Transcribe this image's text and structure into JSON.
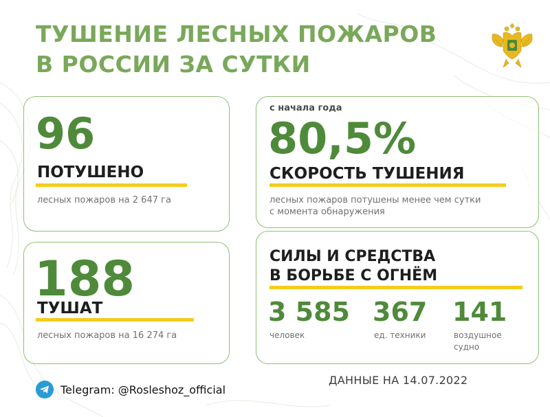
{
  "title": {
    "line1": "ТУШЕНИЕ ЛЕСНЫХ ПОЖАРОВ",
    "line2": "В РОССИИ ЗА СУТКИ"
  },
  "colors": {
    "accent_green": "#79a85a",
    "number_green": "#4e8a3a",
    "highlight_yellow": "#f4cc1a",
    "telegram_blue": "#2a9bd5"
  },
  "extinguished": {
    "number": "96",
    "label": "ПОТУШЕНО",
    "caption": "лесных пожаров на 2 647 га"
  },
  "burning": {
    "number": "188",
    "label": "ТУШАТ",
    "caption": "лесных пожаров на 16 274 га"
  },
  "speed": {
    "kicker": "с начала года",
    "number": "80,5%",
    "label": "СКОРОСТЬ ТУШЕНИЯ",
    "caption_line1": "лесных пожаров потушены менее чем сутки",
    "caption_line2": "с момента обнаружения"
  },
  "forces": {
    "title_line1": "СИЛЫ И СРЕДСТВА",
    "title_line2": "В БОРЬБЕ С ОГНЁМ",
    "items": [
      {
        "value": "3 585",
        "caption_line1": "человек",
        "caption_line2": ""
      },
      {
        "value": "367",
        "caption_line1": "ед. техники",
        "caption_line2": ""
      },
      {
        "value": "141",
        "caption_line1": "воздушное",
        "caption_line2": "судно"
      }
    ]
  },
  "footer": {
    "telegram": "Telegram: @Rosleshoz_official",
    "date": "ДАННЫЕ НА 14.07.2022"
  },
  "icons": [
    "telegram-icon",
    "emblem-icon"
  ]
}
